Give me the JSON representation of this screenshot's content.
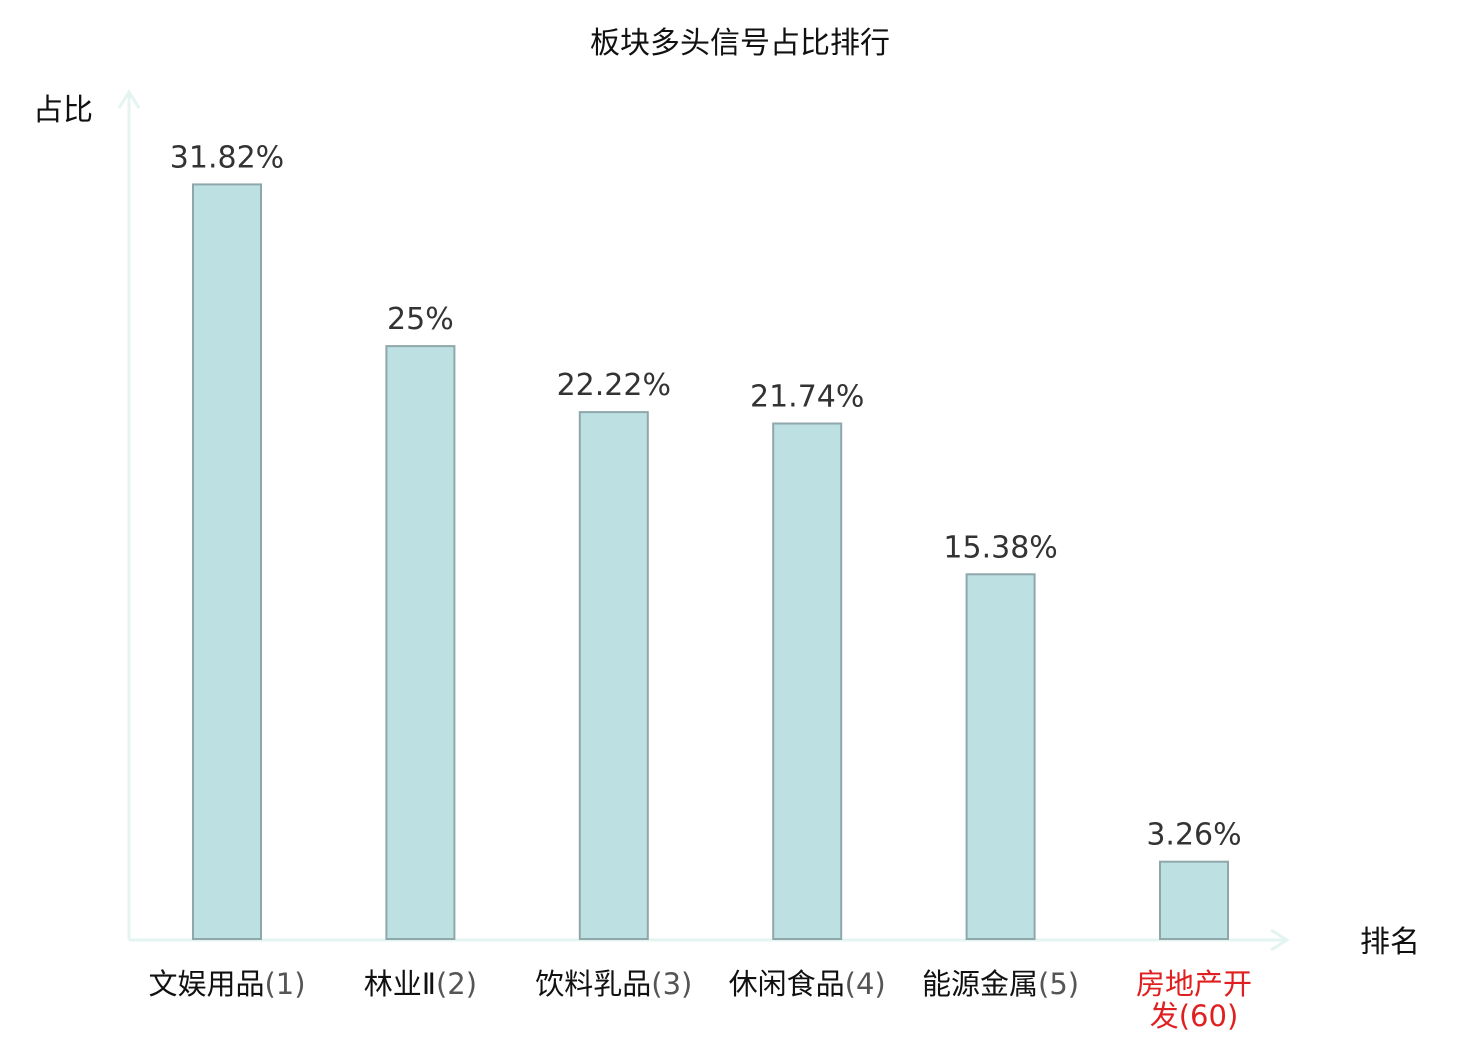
{
  "chart_data": {
    "type": "bar",
    "title": "板块多头信号占比排行",
    "xlabel": "排名",
    "ylabel": "占比",
    "categories": [
      {
        "name": "文娱用品",
        "rank": "(1)",
        "highlight": false
      },
      {
        "name": "林业Ⅱ",
        "rank": "(2)",
        "highlight": false
      },
      {
        "name": "饮料乳品",
        "rank": "(3)",
        "highlight": false
      },
      {
        "name": "休闲食品",
        "rank": "(4)",
        "highlight": false
      },
      {
        "name": "能源金属",
        "rank": "(5)",
        "highlight": false
      },
      {
        "name": "房地产开发",
        "rank": "(60)",
        "highlight": true
      }
    ],
    "values": [
      31.82,
      25,
      22.22,
      21.74,
      15.38,
      3.26
    ],
    "value_labels": [
      "31.82%",
      "25%",
      "22.22%",
      "21.74%",
      "15.38%",
      "3.26%"
    ],
    "ylim": [
      0,
      35
    ],
    "grid": false,
    "legend": "none",
    "colors": {
      "bar_fill": "#bde0e3",
      "bar_stroke": "#8fa7aa",
      "axis": "#e3f4f1",
      "highlight_text": "#e02020",
      "text": "#111111"
    }
  }
}
